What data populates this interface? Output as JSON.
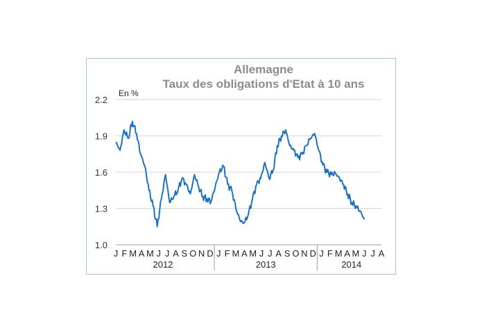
{
  "chart_data": {
    "type": "line",
    "title": "Allemagne",
    "subtitle": "Taux des obligations d'Etat à 10 ans",
    "ylabel": "En %",
    "ylim": [
      1.0,
      2.2
    ],
    "yticks": [
      "1.0",
      "1.3",
      "1.6",
      "1.9",
      "2.2"
    ],
    "grid": true,
    "color": "#1a73c2",
    "month_letters": [
      "J",
      "F",
      "M",
      "A",
      "M",
      "J",
      "J",
      "A",
      "S",
      "O",
      "N",
      "D",
      "J",
      "F",
      "M",
      "A",
      "M",
      "J",
      "J",
      "A",
      "S",
      "O",
      "N",
      "D",
      "J",
      "F",
      "M",
      "A",
      "M",
      "J",
      "J",
      "A"
    ],
    "years": [
      "2012",
      "2013",
      "2014"
    ],
    "x": [
      "2012-01",
      "2012-01",
      "2012-02",
      "2012-02",
      "2012-03",
      "2012-03",
      "2012-04",
      "2012-04",
      "2012-05",
      "2012-05",
      "2012-06",
      "2012-06",
      "2012-07",
      "2012-07",
      "2012-08",
      "2012-08",
      "2012-09",
      "2012-09",
      "2012-10",
      "2012-10",
      "2012-11",
      "2012-11",
      "2012-12",
      "2012-12",
      "2013-01",
      "2013-01",
      "2013-02",
      "2013-02",
      "2013-03",
      "2013-03",
      "2013-04",
      "2013-04",
      "2013-05",
      "2013-05",
      "2013-06",
      "2013-06",
      "2013-07",
      "2013-07",
      "2013-08",
      "2013-08",
      "2013-09",
      "2013-09",
      "2013-10",
      "2013-10",
      "2013-11",
      "2013-11",
      "2013-12",
      "2013-12",
      "2014-01",
      "2014-01",
      "2014-02",
      "2014-02",
      "2014-03",
      "2014-03",
      "2014-04",
      "2014-04",
      "2014-05",
      "2014-05",
      "2014-06",
      "2014-06",
      "2014-07"
    ],
    "series": [
      {
        "values": [
          1.85,
          1.78,
          1.95,
          1.88,
          2.02,
          1.92,
          1.75,
          1.65,
          1.45,
          1.32,
          1.15,
          1.38,
          1.58,
          1.35,
          1.4,
          1.45,
          1.55,
          1.5,
          1.42,
          1.58,
          1.48,
          1.4,
          1.38,
          1.36,
          1.48,
          1.6,
          1.65,
          1.5,
          1.45,
          1.3,
          1.2,
          1.18,
          1.25,
          1.38,
          1.5,
          1.55,
          1.68,
          1.55,
          1.62,
          1.82,
          1.9,
          1.95,
          1.82,
          1.78,
          1.72,
          1.75,
          1.82,
          1.88,
          1.92,
          1.78,
          1.66,
          1.6,
          1.58,
          1.59,
          1.55,
          1.5,
          1.42,
          1.35,
          1.32,
          1.28,
          1.21
        ]
      }
    ]
  }
}
